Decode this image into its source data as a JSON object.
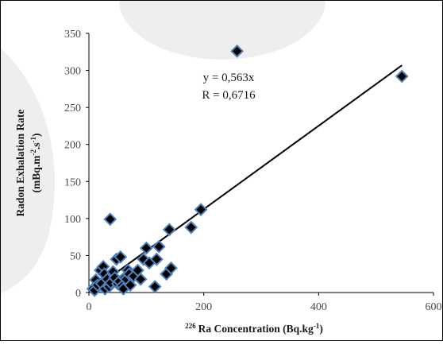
{
  "chart_data": {
    "type": "scatter",
    "xlabel_sup": "226",
    "xlabel": "Ra Concentration (Bq.kg",
    "xlabel_unit_sup": "-1",
    "xlabel_close": ")",
    "ylabel_line1": "Radon Exhalation Rate",
    "ylabel_line2": "(mBq.m",
    "ylabel_sup1": "-2",
    "ylabel_mid": ".s",
    "ylabel_sup2": "-1",
    "ylabel_close": ")",
    "xlim": [
      0,
      600
    ],
    "ylim": [
      0,
      350
    ],
    "x_ticks": [
      0,
      200,
      400,
      600
    ],
    "y_ticks": [
      0,
      50,
      100,
      150,
      200,
      250,
      300,
      350
    ],
    "x_tick_labels": [
      "0",
      "200",
      "400",
      "600"
    ],
    "y_tick_labels": [
      "0",
      "50",
      "100",
      "150",
      "200",
      "250",
      "300",
      "350"
    ],
    "equation": "y = 0,563x",
    "r_value": "R = 0,6716",
    "trendline": {
      "slope": 0.563,
      "x_range": [
        0,
        545
      ]
    },
    "grid": false,
    "points": [
      {
        "x": 7,
        "y": 5
      },
      {
        "x": 10,
        "y": 3
      },
      {
        "x": 12,
        "y": 17
      },
      {
        "x": 15,
        "y": 10
      },
      {
        "x": 20,
        "y": 30
      },
      {
        "x": 22,
        "y": 12
      },
      {
        "x": 25,
        "y": 35
      },
      {
        "x": 27,
        "y": 25
      },
      {
        "x": 28,
        "y": 5
      },
      {
        "x": 32,
        "y": 18
      },
      {
        "x": 35,
        "y": 8
      },
      {
        "x": 38,
        "y": 13
      },
      {
        "x": 37,
        "y": 99
      },
      {
        "x": 42,
        "y": 28
      },
      {
        "x": 45,
        "y": 20
      },
      {
        "x": 48,
        "y": 45
      },
      {
        "x": 50,
        "y": 12
      },
      {
        "x": 53,
        "y": 15
      },
      {
        "x": 55,
        "y": 48
      },
      {
        "x": 58,
        "y": 9
      },
      {
        "x": 60,
        "y": 5
      },
      {
        "x": 62,
        "y": 20
      },
      {
        "x": 65,
        "y": 18
      },
      {
        "x": 68,
        "y": 30
      },
      {
        "x": 70,
        "y": 25
      },
      {
        "x": 72,
        "y": 10
      },
      {
        "x": 78,
        "y": 22
      },
      {
        "x": 85,
        "y": 30
      },
      {
        "x": 90,
        "y": 18
      },
      {
        "x": 95,
        "y": 45
      },
      {
        "x": 100,
        "y": 60
      },
      {
        "x": 105,
        "y": 40
      },
      {
        "x": 115,
        "y": 8
      },
      {
        "x": 118,
        "y": 45
      },
      {
        "x": 122,
        "y": 62
      },
      {
        "x": 135,
        "y": 25
      },
      {
        "x": 140,
        "y": 85
      },
      {
        "x": 143,
        "y": 33
      },
      {
        "x": 178,
        "y": 88
      },
      {
        "x": 195,
        "y": 112
      },
      {
        "x": 258,
        "y": 326
      },
      {
        "x": 545,
        "y": 292
      }
    ]
  }
}
